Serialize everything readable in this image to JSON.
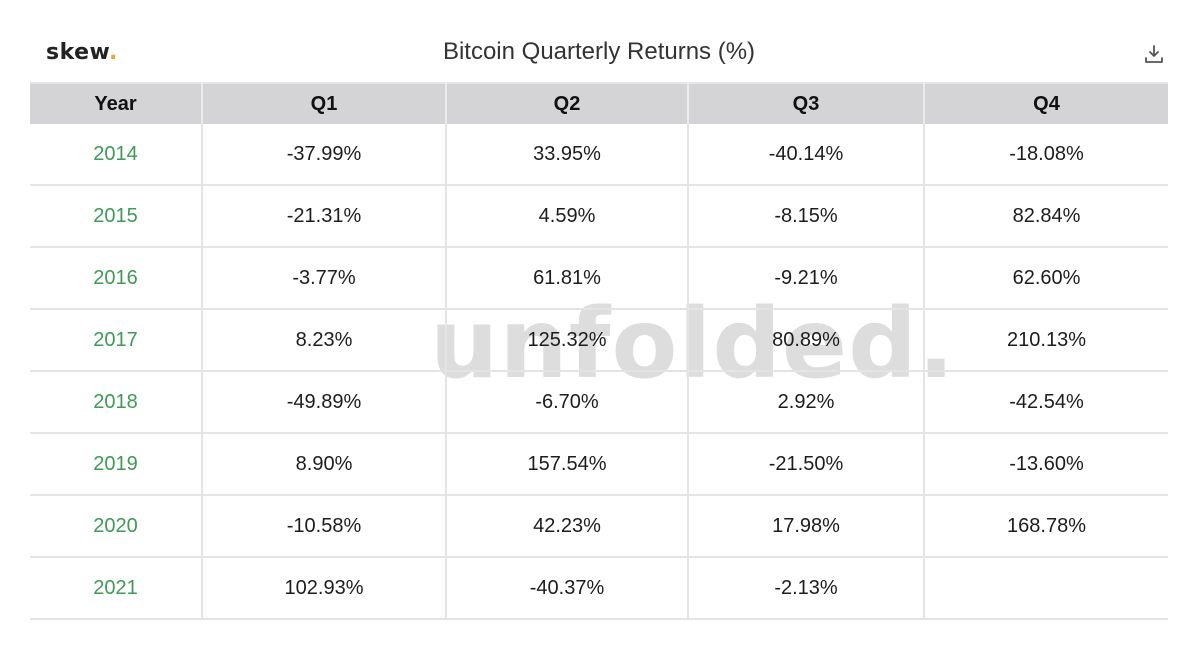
{
  "brand": {
    "logo_text": "skew",
    "logo_dot": ".",
    "accent": "#f4a236"
  },
  "watermark": "unfolded.",
  "download_icon": "download-icon",
  "chart_data": {
    "type": "table",
    "title": "Bitcoin Quarterly Returns (%)",
    "columns": [
      "Year",
      "Q1",
      "Q2",
      "Q3",
      "Q4"
    ],
    "rows": [
      [
        "2014",
        "-37.99%",
        "33.95%",
        "-40.14%",
        "-18.08%"
      ],
      [
        "2015",
        "-21.31%",
        "4.59%",
        "-8.15%",
        "82.84%"
      ],
      [
        "2016",
        "-3.77%",
        "61.81%",
        "-9.21%",
        "62.60%"
      ],
      [
        "2017",
        "8.23%",
        "125.32%",
        "80.89%",
        "210.13%"
      ],
      [
        "2018",
        "-49.89%",
        "-6.70%",
        "2.92%",
        "-42.54%"
      ],
      [
        "2019",
        "8.90%",
        "157.54%",
        "-21.50%",
        "-13.60%"
      ],
      [
        "2020",
        "-10.58%",
        "42.23%",
        "17.98%",
        "168.78%"
      ],
      [
        "2021",
        "102.93%",
        "-40.37%",
        "-2.13%",
        ""
      ]
    ]
  },
  "colors": {
    "year_text": "#3e9a55",
    "header_bg": "#d4d4d6"
  }
}
